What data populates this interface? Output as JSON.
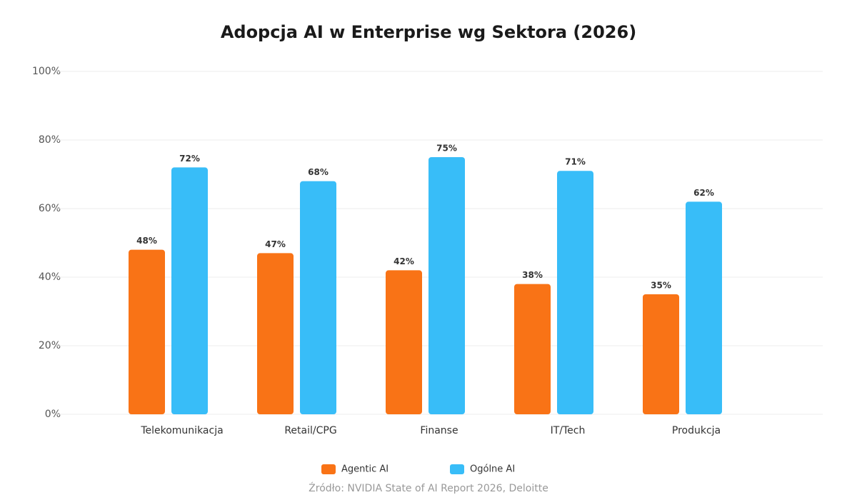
{
  "chart_data": {
    "type": "bar",
    "title": "Adopcja AI w Enterprise wg Sektora (2026)",
    "categories": [
      "Telekomunikacja",
      "Retail/CPG",
      "Finanse",
      "IT/Tech",
      "Produkcja"
    ],
    "series": [
      {
        "name": "Agentic AI",
        "color": "#f97316",
        "values": [
          48,
          47,
          42,
          38,
          35
        ],
        "value_labels": [
          "48%",
          "47%",
          "42%",
          "38%",
          "35%"
        ]
      },
      {
        "name": "Ogólne AI",
        "color": "#38bdf8",
        "values": [
          72,
          68,
          75,
          71,
          62
        ],
        "value_labels": [
          "72%",
          "68%",
          "75%",
          "71%",
          "62%"
        ]
      }
    ],
    "ylim": [
      0,
      100
    ],
    "yticks": [
      {
        "value": 0,
        "label": "0%"
      },
      {
        "value": 20,
        "label": "20%"
      },
      {
        "value": 40,
        "label": "40%"
      },
      {
        "value": 60,
        "label": "60%"
      },
      {
        "value": 80,
        "label": "80%"
      },
      {
        "value": 100,
        "label": "100%"
      }
    ],
    "grid": true,
    "legend": "bottom",
    "source": "Źródło: NVIDIA State of AI Report 2026, Deloitte"
  }
}
